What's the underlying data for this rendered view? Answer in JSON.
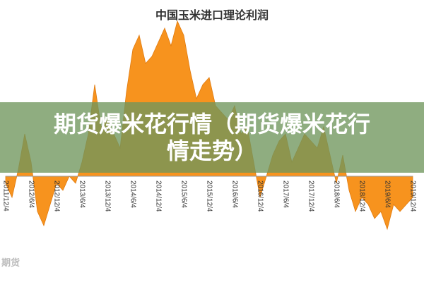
{
  "chart_data": {
    "type": "area",
    "title": "中国玉米进口理论利润",
    "categories": [
      "2011/12/4",
      null,
      null,
      null,
      "2012/6/4",
      null,
      null,
      null,
      "2012/12/4",
      null,
      null,
      null,
      "2013/6/4",
      null,
      null,
      null,
      "2013/12/4",
      null,
      null,
      null,
      "2014/6/4",
      null,
      null,
      null,
      "2014/12/4",
      null,
      null,
      null,
      "2015/6/4",
      null,
      null,
      null,
      "2015/12/4",
      null,
      null,
      null,
      "2016/6/4",
      null,
      null,
      null,
      "2016/12/4",
      null,
      null,
      null,
      "2017/6/4",
      null,
      null,
      null,
      "2017/12/4",
      null,
      null,
      null,
      "2018/6/4",
      null,
      null,
      null,
      "2018/12/4",
      null,
      null,
      null,
      "2019/6/4",
      null,
      null,
      null,
      "2019/12/4"
    ],
    "series": [
      {
        "color": "#f7931e",
        "values": [
          -10,
          -30,
          10,
          60,
          20,
          -50,
          -70,
          -40,
          -10,
          -20,
          0,
          -10,
          20,
          60,
          130,
          70,
          80,
          60,
          40,
          120,
          180,
          200,
          160,
          170,
          190,
          210,
          185,
          220,
          200,
          150,
          110,
          130,
          140,
          100,
          90,
          80,
          100,
          60,
          70,
          20,
          -30,
          0,
          30,
          50,
          60,
          20,
          40,
          60,
          50,
          40,
          70,
          30,
          -10,
          30,
          -20,
          -50,
          -30,
          -40,
          -60,
          -50,
          -75,
          -40,
          -50,
          -40,
          -30
        ]
      }
    ],
    "ylim": [
      -100,
      250
    ]
  },
  "overlay_title": "期货爆米花行情（期货爆米花行情走势）",
  "watermark": "期货"
}
